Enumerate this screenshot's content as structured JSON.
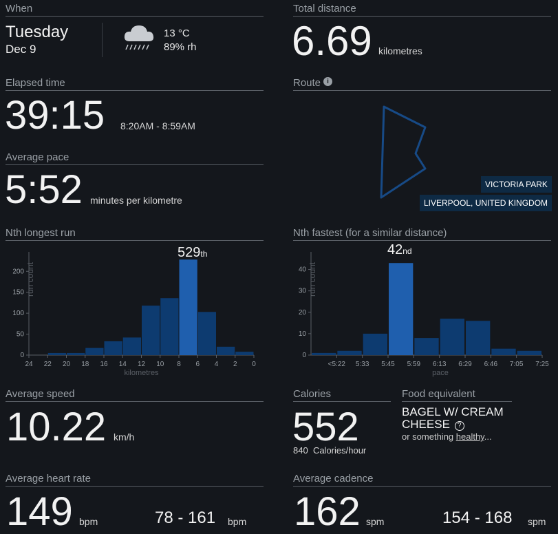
{
  "when": {
    "title": "When",
    "day": "Tuesday",
    "date": "Dec 9",
    "temp": "13 °C",
    "humidity": "89% rh",
    "weather_icon": "rain-cloud-icon"
  },
  "distance": {
    "title": "Total distance",
    "value": "6.69",
    "unit": "kilometres"
  },
  "elapsed": {
    "title": "Elapsed time",
    "value": "39:15",
    "range": "8:20AM - 8:59AM"
  },
  "route": {
    "title": "Route",
    "info_icon": "info-icon",
    "place": "VICTORIA PARK",
    "city": "LIVERPOOL, UNITED KINGDOM"
  },
  "pace": {
    "title": "Average pace",
    "value": "5:52",
    "unit": "minutes per kilometre"
  },
  "longest": {
    "title": "Nth longest run",
    "rank": "529",
    "suffix": "th"
  },
  "fastest": {
    "title": "Nth fastest (for a similar distance)",
    "rank": "42",
    "suffix": "nd"
  },
  "speed": {
    "title": "Average speed",
    "value": "10.22",
    "unit": "km/h"
  },
  "calories": {
    "title": "Calories",
    "value": "552",
    "rate": "840",
    "rate_unit": "Calories/hour"
  },
  "food": {
    "title": "Food equivalent",
    "line1": "BAGEL W/ CREAM",
    "line2": "CHEESE",
    "help_icon": "question-circle-icon",
    "alt_prefix": "or something ",
    "alt_link": "healthy",
    "alt_suffix": "..."
  },
  "heart": {
    "title": "Average heart rate",
    "value": "149",
    "unit": "bpm",
    "range": "78 - 161",
    "range_unit": "bpm"
  },
  "cadence": {
    "title": "Average cadence",
    "value": "162",
    "unit": "spm",
    "range": "154 - 168",
    "range_unit": "spm"
  },
  "chart_data": [
    {
      "type": "bar",
      "xlabel": "kilometres",
      "ylabel": "run count",
      "ylim": [
        0,
        230
      ],
      "yticks": [
        0,
        50,
        100,
        150,
        200
      ],
      "xticks": [
        "24",
        "22",
        "20",
        "18",
        "16",
        "14",
        "12",
        "10",
        "8",
        "6",
        "4",
        "2",
        "0"
      ],
      "bins": [
        [
          22,
          20
        ],
        [
          20,
          18
        ],
        [
          18,
          16
        ],
        [
          16,
          14
        ],
        [
          14,
          12
        ],
        [
          12,
          10
        ],
        [
          10,
          8
        ],
        [
          8,
          6
        ],
        [
          6,
          4
        ],
        [
          4,
          2
        ],
        [
          2,
          0
        ]
      ],
      "values": [
        5,
        5,
        17,
        33,
        42,
        118,
        136,
        228,
        103,
        20,
        8
      ],
      "highlight_index": 7,
      "color": "#0d3b70",
      "highlight_color": "#1f5fae",
      "grid": false
    },
    {
      "type": "bar",
      "xlabel": "pace",
      "ylabel": "run count",
      "ylim": [
        0,
        45
      ],
      "yticks": [
        0,
        10,
        20,
        30,
        40
      ],
      "xticks": [
        "<5:22",
        "5:33",
        "5:45",
        "5:59",
        "6:13",
        "6:29",
        "6:46",
        "7:05",
        "7:25"
      ],
      "values": [
        1,
        2,
        10,
        43,
        8,
        17,
        16,
        3,
        2
      ],
      "highlight_index": 3,
      "color": "#0d3b70",
      "highlight_color": "#1f5fae",
      "grid": false
    }
  ]
}
